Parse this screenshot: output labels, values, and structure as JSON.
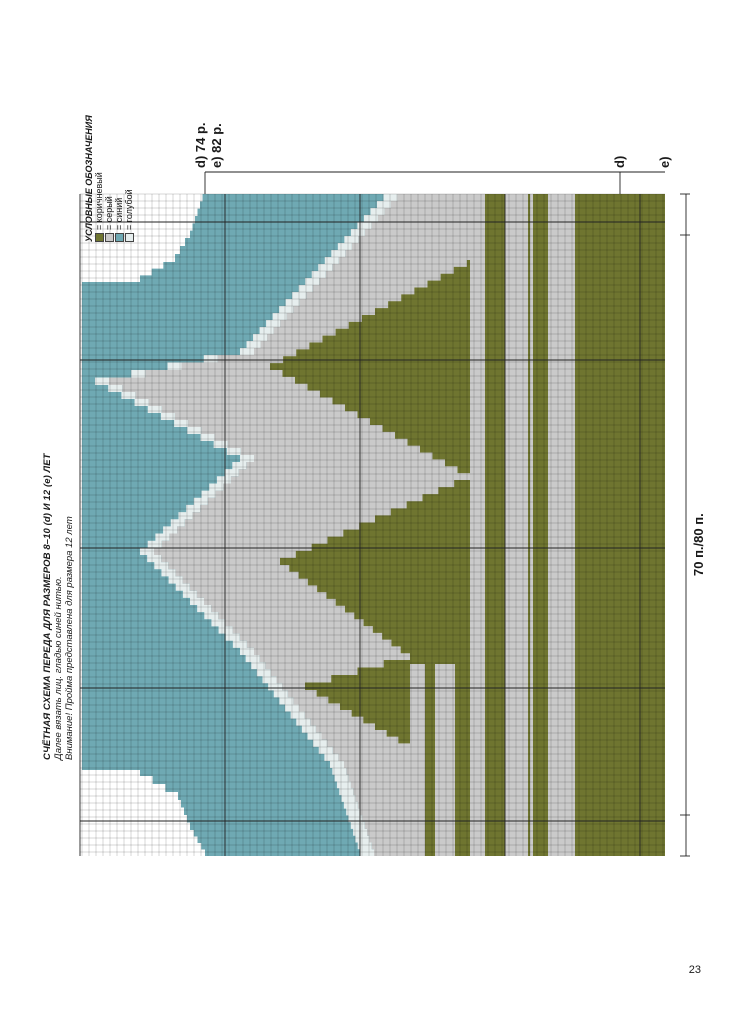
{
  "title": "СЧЁТНАЯ СХЕМА ПЕРЕДА ДЛЯ РАЗМЕРОВ 8–10 (d) И 12 (e) ЛЕТ",
  "note_line1": "Далее вязать лиц. гладью синей нитью.",
  "note_line2": "Внимание! Пройма представлена для размера 12 лет",
  "width_label": "70 п./80 п.",
  "rows_label_d": "d) 74 р.",
  "rows_label_e": "e) 82 р.",
  "size_label_d": "d)",
  "size_label_e": "e)",
  "legend": {
    "title": "УСЛОВНЫЕ ОБОЗНАЧЕНИЯ",
    "items": [
      {
        "label": "= коричневый",
        "color": "#6f7530"
      },
      {
        "label": "= серый",
        "color": "#cacaca"
      },
      {
        "label": "= синий",
        "color": "#6fa9b3"
      },
      {
        "label": "= голубой",
        "color": "#e6eeee"
      }
    ]
  },
  "page_number": "23"
}
